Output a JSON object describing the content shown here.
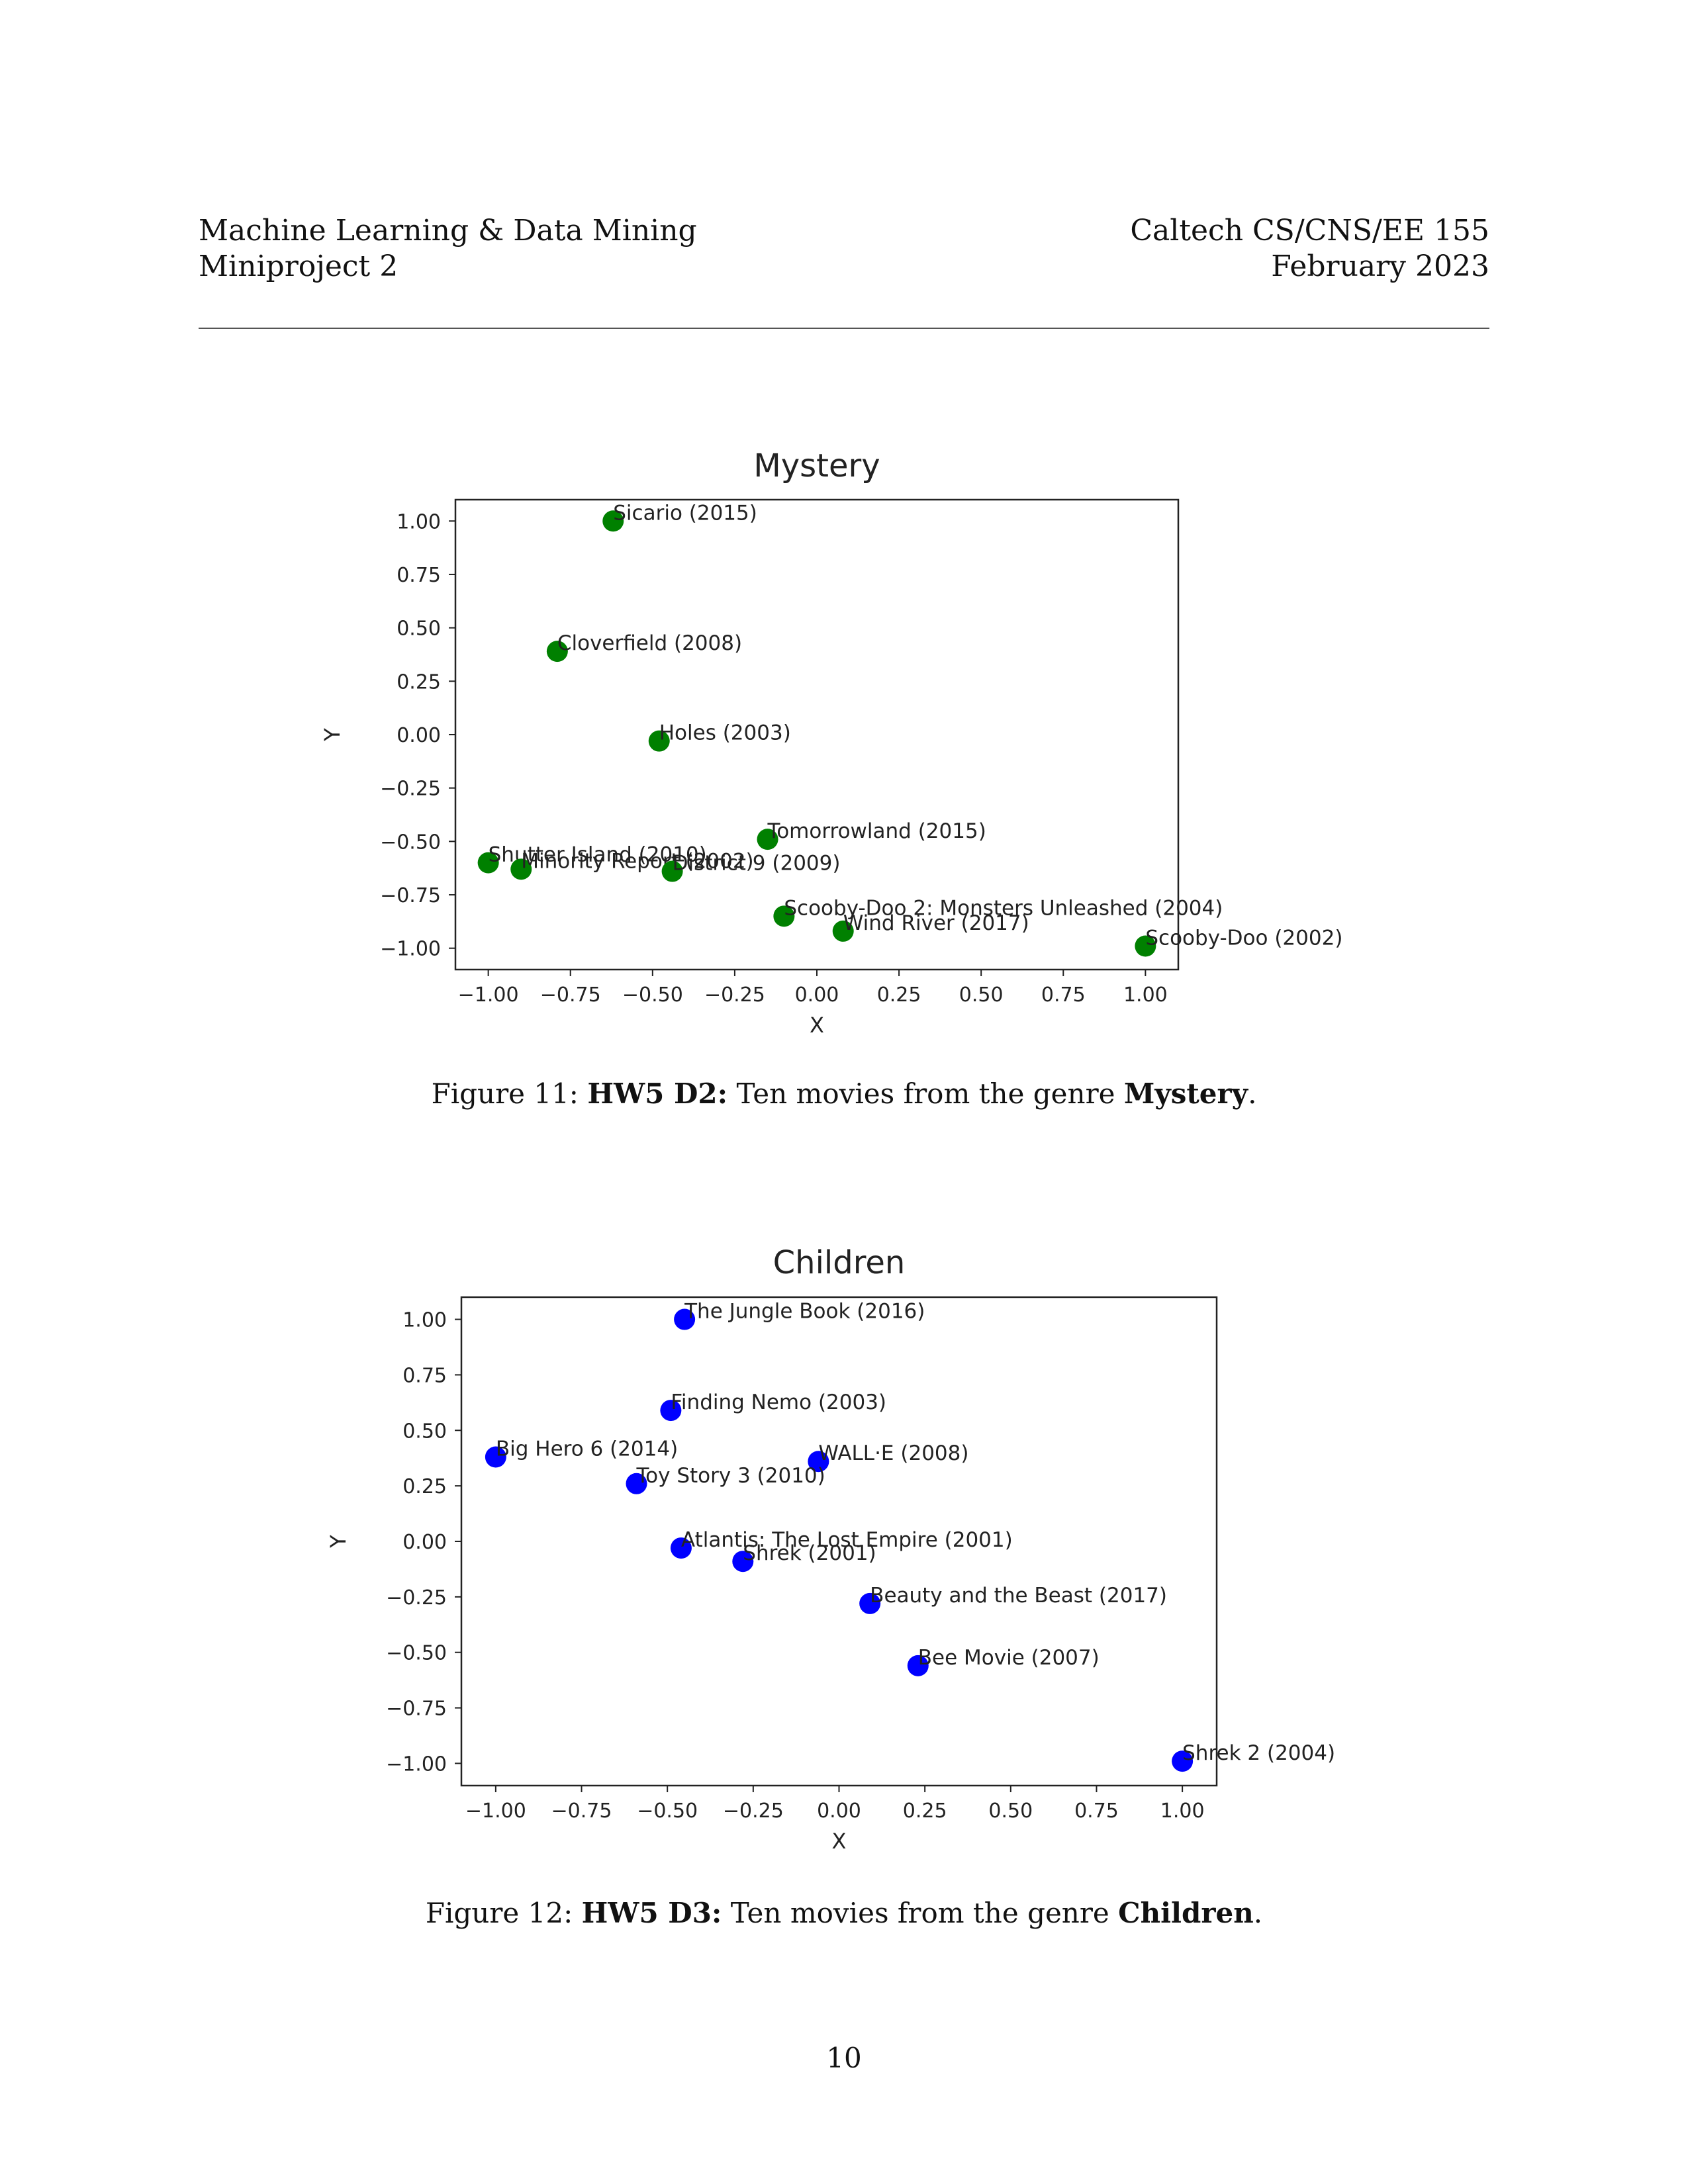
{
  "header": {
    "left_line1": "Machine Learning & Data Mining",
    "left_line2": "Miniproject 2",
    "right_line1": "Caltech CS/CNS/EE 155",
    "right_line2": "February 2023"
  },
  "figures": [
    {
      "caption_prefix": "Figure 11: ",
      "caption_bold1": "HW5 D2:",
      "caption_text": " Ten movies from the genre ",
      "caption_bold2": "Mystery",
      "caption_end": "."
    },
    {
      "caption_prefix": "Figure 12: ",
      "caption_bold1": "HW5 D3:",
      "caption_text": " Ten movies from the genre ",
      "caption_bold2": "Children",
      "caption_end": "."
    }
  ],
  "page_number": "10",
  "chart_data": [
    {
      "type": "scatter",
      "title": "Mystery",
      "xlabel": "X",
      "ylabel": "Y",
      "xlim": [
        -1.1,
        1.1
      ],
      "ylim": [
        -1.1,
        1.1
      ],
      "xticks": [
        -1.0,
        -0.75,
        -0.5,
        -0.25,
        0.0,
        0.25,
        0.5,
        0.75,
        1.0
      ],
      "yticks": [
        -1.0,
        -0.75,
        -0.5,
        -0.25,
        0.0,
        0.25,
        0.5,
        0.75,
        1.0
      ],
      "xtick_labels": [
        "−1.00",
        "−0.75",
        "−0.50",
        "−0.25",
        "0.00",
        "0.25",
        "0.50",
        "0.75",
        "1.00"
      ],
      "ytick_labels": [
        "−1.00",
        "−0.75",
        "−0.50",
        "−0.25",
        "0.00",
        "0.25",
        "0.50",
        "0.75",
        "1.00"
      ],
      "color": "#008000",
      "grid": false,
      "points": [
        {
          "label": "Sicario (2015)",
          "x": -0.62,
          "y": 1.0
        },
        {
          "label": "Cloverfield (2008)",
          "x": -0.79,
          "y": 0.39
        },
        {
          "label": "Holes (2003)",
          "x": -0.48,
          "y": -0.03
        },
        {
          "label": "Tomorrowland (2015)",
          "x": -0.15,
          "y": -0.49
        },
        {
          "label": "Shutter Island (2010)",
          "x": -1.0,
          "y": -0.6
        },
        {
          "label": "Minority Report (2002)",
          "x": -0.9,
          "y": -0.63
        },
        {
          "label": "District 9 (2009)",
          "x": -0.44,
          "y": -0.64
        },
        {
          "label": "Scooby-Doo 2: Monsters Unleashed (2004)",
          "x": -0.1,
          "y": -0.85
        },
        {
          "label": "Wind River (2017)",
          "x": 0.08,
          "y": -0.92
        },
        {
          "label": "Scooby-Doo (2002)",
          "x": 1.0,
          "y": -0.99
        }
      ]
    },
    {
      "type": "scatter",
      "title": "Children",
      "xlabel": "X",
      "ylabel": "Y",
      "xlim": [
        -1.1,
        1.1
      ],
      "ylim": [
        -1.1,
        1.1
      ],
      "xticks": [
        -1.0,
        -0.75,
        -0.5,
        -0.25,
        0.0,
        0.25,
        0.5,
        0.75,
        1.0
      ],
      "yticks": [
        -1.0,
        -0.75,
        -0.5,
        -0.25,
        0.0,
        0.25,
        0.5,
        0.75,
        1.0
      ],
      "xtick_labels": [
        "−1.00",
        "−0.75",
        "−0.50",
        "−0.25",
        "0.00",
        "0.25",
        "0.50",
        "0.75",
        "1.00"
      ],
      "ytick_labels": [
        "−1.00",
        "−0.75",
        "−0.50",
        "−0.25",
        "0.00",
        "0.25",
        "0.50",
        "0.75",
        "1.00"
      ],
      "color": "#0000ff",
      "grid": false,
      "points": [
        {
          "label": "The Jungle Book (2016)",
          "x": -0.45,
          "y": 1.0
        },
        {
          "label": "Finding Nemo (2003)",
          "x": -0.49,
          "y": 0.59
        },
        {
          "label": "Big Hero 6 (2014)",
          "x": -1.0,
          "y": 0.38
        },
        {
          "label": "WALL·E (2008)",
          "x": -0.06,
          "y": 0.36
        },
        {
          "label": "Toy Story 3 (2010)",
          "x": -0.59,
          "y": 0.26
        },
        {
          "label": "Atlantis: The Lost Empire (2001)",
          "x": -0.46,
          "y": -0.03
        },
        {
          "label": "Shrek (2001)",
          "x": -0.28,
          "y": -0.09
        },
        {
          "label": "Beauty and the Beast (2017)",
          "x": 0.09,
          "y": -0.28
        },
        {
          "label": "Bee Movie (2007)",
          "x": 0.23,
          "y": -0.56
        },
        {
          "label": "Shrek 2 (2004)",
          "x": 1.0,
          "y": -0.99
        }
      ]
    }
  ]
}
